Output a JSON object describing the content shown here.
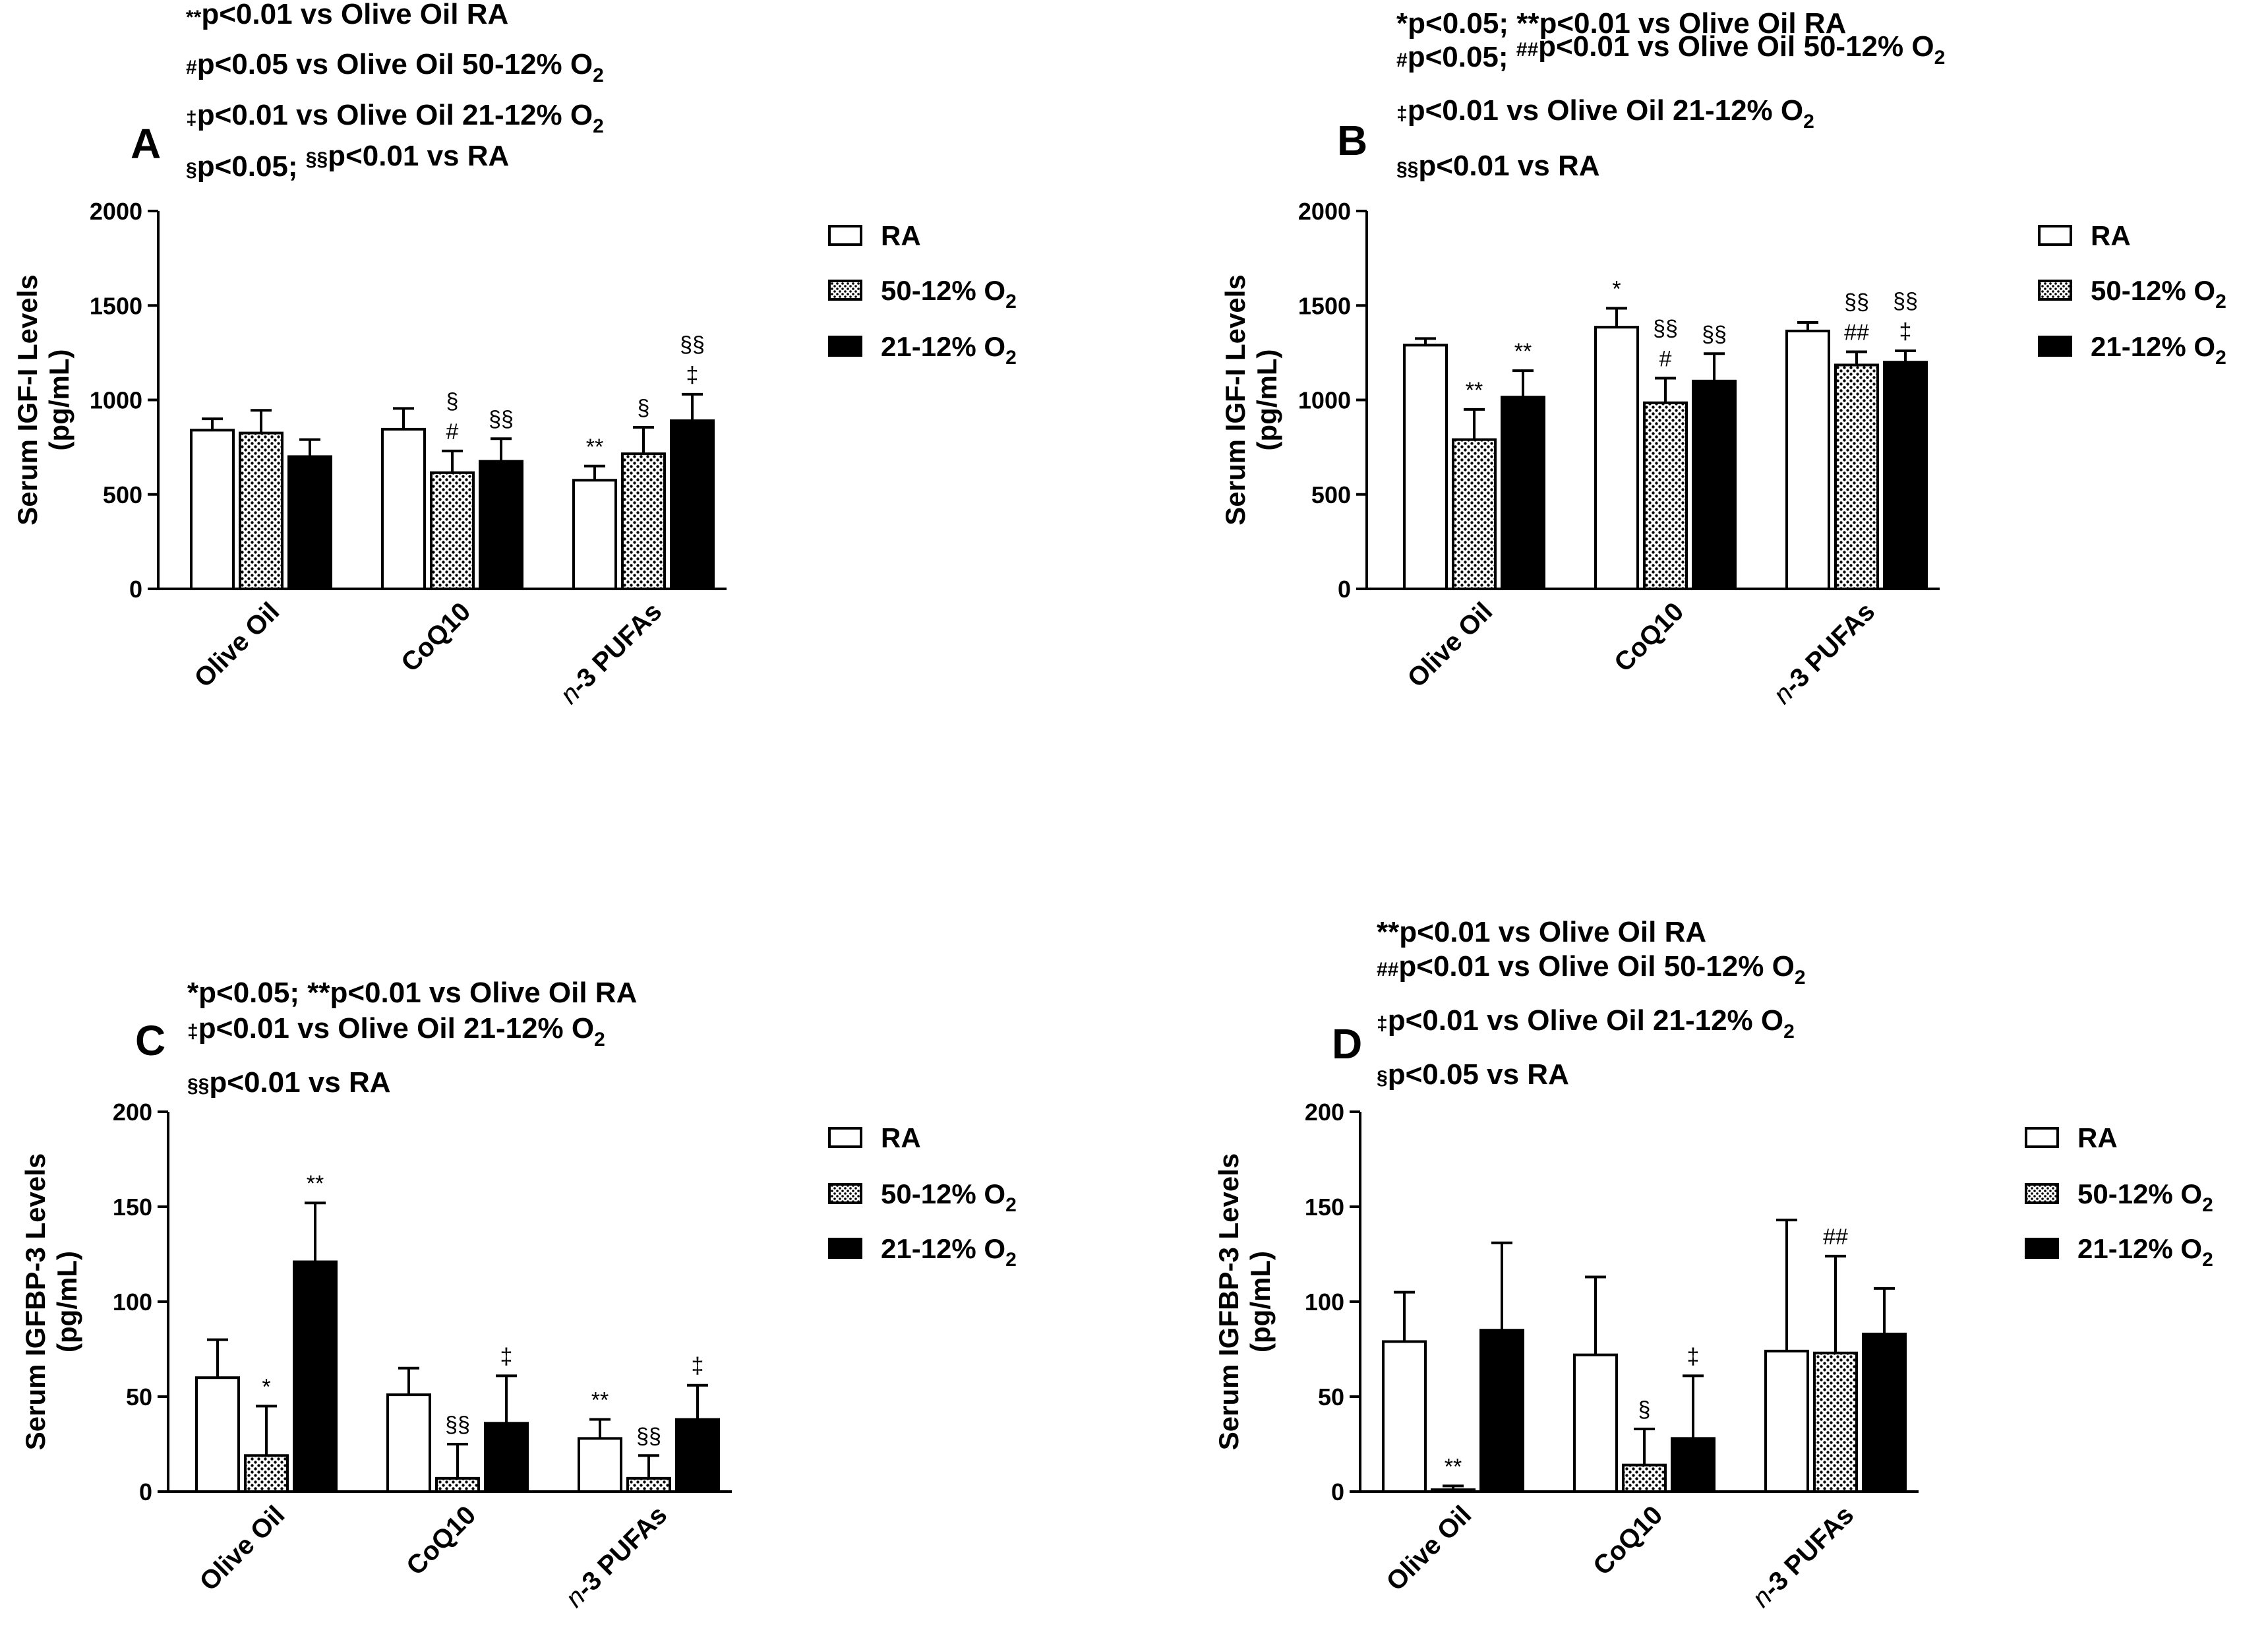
{
  "patterns": {
    "dots_bg": "#ffffff",
    "dots_fg": "#000000"
  },
  "chart_data": [
    {
      "id": "A",
      "type": "bar",
      "panel_label": "A",
      "notes": [
        {
          "parts": [
            {
              "t": "sup",
              "s": "**"
            },
            {
              "t": "n",
              "s": "p<0.01 vs Olive Oil RA"
            }
          ]
        },
        {
          "parts": [
            {
              "t": "sup",
              "s": "#"
            },
            {
              "t": "n",
              "s": "p<0.05 vs Olive Oil 50-12% O"
            },
            {
              "t": "sub",
              "s": "2"
            }
          ]
        },
        {
          "parts": [
            {
              "t": "sup",
              "s": "‡"
            },
            {
              "t": "n",
              "s": "p<0.01 vs Olive Oil 21-12% O"
            },
            {
              "t": "sub",
              "s": "2"
            }
          ]
        },
        {
          "parts": [
            {
              "t": "sup",
              "s": "§"
            },
            {
              "t": "n",
              "s": "p<0.05; "
            },
            {
              "t": "sup",
              "s": "§§"
            },
            {
              "t": "n",
              "s": "p<0.01 vs RA"
            }
          ]
        }
      ],
      "ylabel_line1": "Serum IGF-I Levels",
      "ylabel_line2": "(pg/mL)",
      "ylim": [
        0,
        2000
      ],
      "yticks": [
        0,
        500,
        1000,
        1500,
        2000
      ],
      "categories": [
        "Olive Oil",
        "CoQ10",
        "n-3 PUFAs"
      ],
      "series": [
        {
          "name": "RA",
          "fill": "white",
          "values": [
            840,
            845,
            575
          ],
          "errors": [
            60,
            110,
            75
          ],
          "sig": [
            "",
            "",
            "**"
          ]
        },
        {
          "name": "50-12% O2",
          "fill": "dots",
          "values": [
            825,
            615,
            715
          ],
          "errors": [
            120,
            115,
            140
          ],
          "sig": [
            "",
            "§\n#",
            "§"
          ]
        },
        {
          "name": "21-12% O2",
          "fill": "black",
          "values": [
            700,
            675,
            890
          ],
          "errors": [
            90,
            120,
            140
          ],
          "sig": [
            "",
            "§§",
            "§§\n‡"
          ]
        }
      ],
      "legend": [
        "RA",
        "50-12% O",
        "21-12% O"
      ],
      "legend_sub": [
        "",
        "2",
        "2"
      ]
    },
    {
      "id": "B",
      "type": "bar",
      "panel_label": "B",
      "notes": [
        {
          "parts": [
            {
              "t": "n",
              "s": "*p<0.05; **p<0.01 vs Olive Oil RA"
            }
          ]
        },
        {
          "parts": [
            {
              "t": "sup",
              "s": "#"
            },
            {
              "t": "n",
              "s": "p<0.05; "
            },
            {
              "t": "sup",
              "s": "##"
            },
            {
              "t": "n",
              "s": "p<0.01 vs Olive Oil 50-12% O"
            },
            {
              "t": "sub",
              "s": "2"
            }
          ]
        },
        {
          "parts": [
            {
              "t": "sup",
              "s": "‡"
            },
            {
              "t": "n",
              "s": "p<0.01 vs Olive Oil 21-12% O"
            },
            {
              "t": "sub",
              "s": "2"
            }
          ]
        },
        {
          "parts": [
            {
              "t": "sup",
              "s": "§§"
            },
            {
              "t": "n",
              "s": "p<0.01 vs RA"
            }
          ]
        }
      ],
      "ylabel_line1": "Serum IGF-I Levels",
      "ylabel_line2": "(pg/mL)",
      "ylim": [
        0,
        2000
      ],
      "yticks": [
        0,
        500,
        1000,
        1500,
        2000
      ],
      "categories": [
        "Olive Oil",
        "CoQ10",
        "n-3 PUFAs"
      ],
      "series": [
        {
          "name": "RA",
          "fill": "white",
          "values": [
            1290,
            1385,
            1365
          ],
          "errors": [
            35,
            100,
            45
          ],
          "sig": [
            "",
            "*",
            ""
          ]
        },
        {
          "name": "50-12% O2",
          "fill": "dots",
          "values": [
            790,
            985,
            1185
          ],
          "errors": [
            160,
            130,
            70
          ],
          "sig": [
            "**",
            "§§\n#",
            "§§\n##"
          ]
        },
        {
          "name": "21-12% O2",
          "fill": "black",
          "values": [
            1015,
            1100,
            1200
          ],
          "errors": [
            140,
            145,
            60
          ],
          "sig": [
            "**",
            "§§",
            "§§\n‡"
          ]
        }
      ],
      "legend": [
        "RA",
        "50-12% O",
        "21-12% O"
      ],
      "legend_sub": [
        "",
        "2",
        "2"
      ]
    },
    {
      "id": "C",
      "type": "bar",
      "panel_label": "C",
      "notes": [
        {
          "parts": [
            {
              "t": "n",
              "s": "*p<0.05; **p<0.01 vs Olive Oil RA"
            }
          ]
        },
        {
          "parts": [
            {
              "t": "sup",
              "s": "‡"
            },
            {
              "t": "n",
              "s": "p<0.01 vs Olive Oil 21-12% O"
            },
            {
              "t": "sub",
              "s": "2"
            }
          ]
        },
        {
          "parts": [
            {
              "t": "sup",
              "s": "§§"
            },
            {
              "t": "n",
              "s": "p<0.01 vs RA"
            }
          ]
        }
      ],
      "ylabel_line1": "Serum IGFBP-3 Levels",
      "ylabel_line2": "(pg/mL)",
      "ylim": [
        0,
        200
      ],
      "yticks": [
        0,
        50,
        100,
        150,
        200
      ],
      "categories": [
        "Olive Oil",
        "CoQ10",
        "n-3 PUFAs"
      ],
      "series": [
        {
          "name": "RA",
          "fill": "white",
          "values": [
            60,
            51,
            28
          ],
          "errors": [
            20,
            14,
            10
          ],
          "sig": [
            "",
            "",
            "**"
          ]
        },
        {
          "name": "50-12% O2",
          "fill": "dots",
          "values": [
            19,
            7,
            7
          ],
          "errors": [
            26,
            18,
            12
          ],
          "sig": [
            "*",
            "§§",
            "§§"
          ]
        },
        {
          "name": "21-12% O2",
          "fill": "black",
          "values": [
            121,
            36,
            38
          ],
          "errors": [
            31,
            25,
            18
          ],
          "sig": [
            "**",
            "‡",
            "‡"
          ]
        }
      ],
      "legend": [
        "RA",
        "50-12% O",
        "21-12% O"
      ],
      "legend_sub": [
        "",
        "2",
        "2"
      ]
    },
    {
      "id": "D",
      "type": "bar",
      "panel_label": "D",
      "notes": [
        {
          "parts": [
            {
              "t": "n",
              "s": "**p<0.01 vs Olive Oil RA"
            }
          ]
        },
        {
          "parts": [
            {
              "t": "sup",
              "s": "##"
            },
            {
              "t": "n",
              "s": "p<0.01 vs Olive Oil 50-12% O"
            },
            {
              "t": "sub",
              "s": "2"
            }
          ]
        },
        {
          "parts": [
            {
              "t": "sup",
              "s": "‡"
            },
            {
              "t": "n",
              "s": "p<0.01 vs Olive Oil 21-12% O"
            },
            {
              "t": "sub",
              "s": "2"
            }
          ]
        },
        {
          "parts": [
            {
              "t": "sup",
              "s": "§"
            },
            {
              "t": "n",
              "s": "p<0.05 vs RA"
            }
          ]
        }
      ],
      "ylabel_line1": "Serum IGFBP-3 Levels",
      "ylabel_line2": "(pg/mL)",
      "ylim": [
        0,
        200
      ],
      "yticks": [
        0,
        50,
        100,
        150,
        200
      ],
      "categories": [
        "Olive Oil",
        "CoQ10",
        "n-3 PUFAs"
      ],
      "series": [
        {
          "name": "RA",
          "fill": "white",
          "values": [
            79,
            72,
            74
          ],
          "errors": [
            26,
            41,
            69
          ],
          "sig": [
            "",
            "",
            ""
          ]
        },
        {
          "name": "50-12% O2",
          "fill": "dots",
          "values": [
            1,
            14,
            73
          ],
          "errors": [
            2,
            19,
            51
          ],
          "sig": [
            "**",
            "§",
            "##"
          ]
        },
        {
          "name": "21-12% O2",
          "fill": "black",
          "values": [
            85,
            28,
            83
          ],
          "errors": [
            46,
            33,
            24
          ],
          "sig": [
            "",
            "‡",
            ""
          ]
        }
      ],
      "legend": [
        "RA",
        "50-12% O",
        "21-12% O"
      ],
      "legend_sub": [
        "",
        "2",
        "2"
      ]
    }
  ]
}
